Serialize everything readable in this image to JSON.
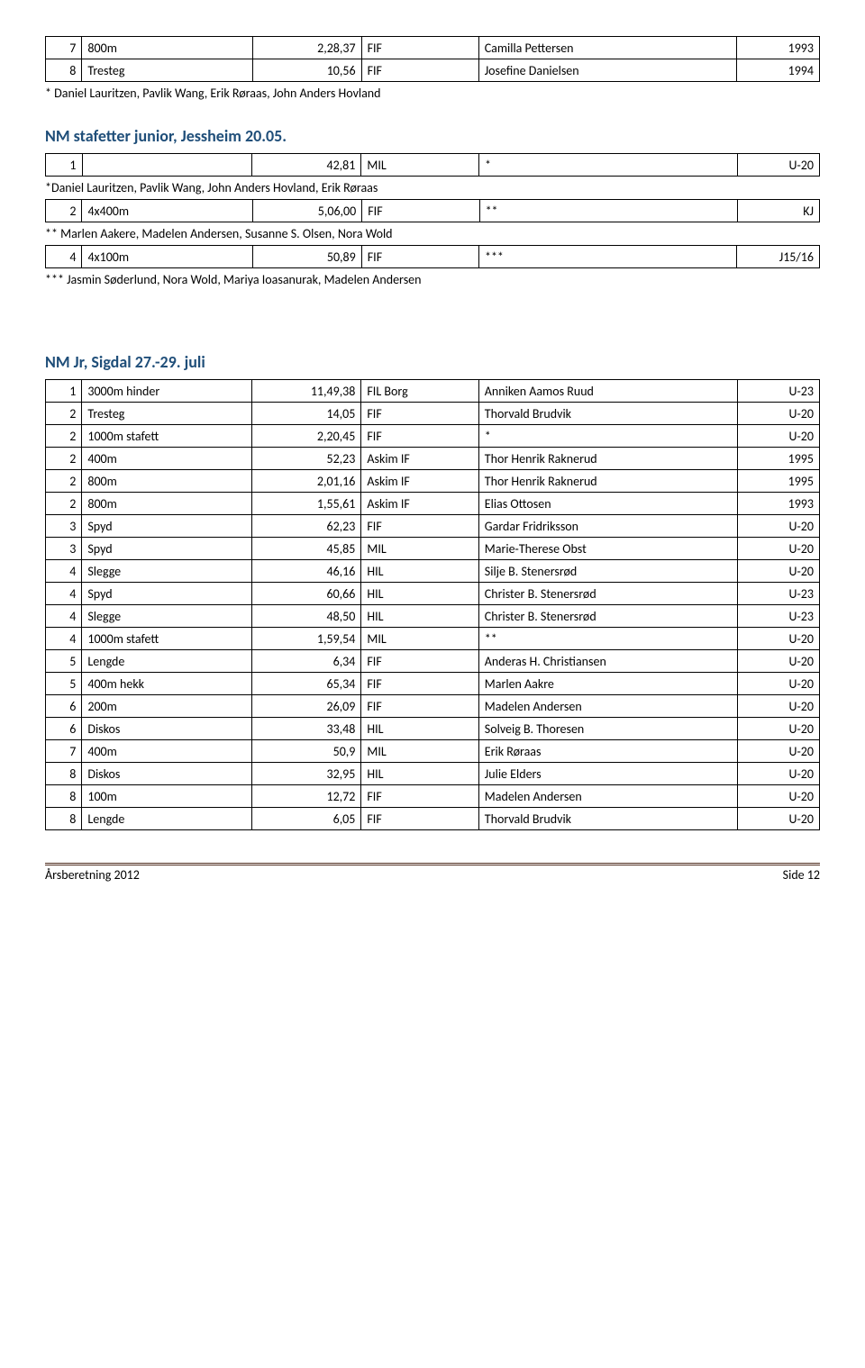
{
  "table_top": {
    "rows": [
      {
        "place": "7",
        "event": "800m",
        "result": "2,28,37",
        "club": "FIF",
        "name": "Camilla Pettersen",
        "year": "1993"
      },
      {
        "place": "8",
        "event": "Tresteg",
        "result": "10,56",
        "club": "FIF",
        "name": "Josefine Danielsen",
        "year": "1994"
      }
    ]
  },
  "note_top": "* Daniel Lauritzen, Pavlik Wang, Erik Røraas, John Anders Hovland",
  "section1": {
    "heading": "NM stafetter junior, Jessheim 20.05.",
    "row1": {
      "place": "1",
      "event": "",
      "result": "42,81",
      "club": "MIL",
      "name": "*",
      "year": "U-20"
    },
    "note1": "*Daniel Lauritzen, Pavlik Wang, John Anders Hovland, Erik Røraas",
    "row2": {
      "place": "2",
      "event": "4x400m",
      "result": "5,06,00",
      "club": "FIF",
      "name": "**",
      "year": "KJ"
    },
    "note2": "** Marlen Aakere, Madelen Andersen, Susanne S. Olsen, Nora Wold",
    "row3": {
      "place": "4",
      "event": "4x100m",
      "result": "50,89",
      "club": "FIF",
      "name": "***",
      "year": "J15/16"
    },
    "note3": "*** Jasmin Søderlund, Nora Wold, Mariya Ioasanurak, Madelen Andersen"
  },
  "section2": {
    "heading": "NM Jr, Sigdal 27.-29. juli",
    "rows": [
      {
        "place": "1",
        "event": "3000m hinder",
        "result": "11,49,38",
        "club": "FIL Borg",
        "name": "Anniken Aamos Ruud",
        "year": "U-23"
      },
      {
        "place": "2",
        "event": "Tresteg",
        "result": "14,05",
        "club": "FIF",
        "name": "Thorvald Brudvik",
        "year": "U-20"
      },
      {
        "place": "2",
        "event": "1000m stafett",
        "result": "2,20,45",
        "club": "FIF",
        "name": "*",
        "year": "U-20"
      },
      {
        "place": "2",
        "event": "400m",
        "result": "52,23",
        "club": "Askim IF",
        "name": "Thor Henrik Raknerud",
        "year": "1995"
      },
      {
        "place": "2",
        "event": "800m",
        "result": "2,01,16",
        "club": "Askim IF",
        "name": "Thor Henrik Raknerud",
        "year": "1995"
      },
      {
        "place": "2",
        "event": "800m",
        "result": "1,55,61",
        "club": "Askim IF",
        "name": "Elias Ottosen",
        "year": "1993"
      },
      {
        "place": "3",
        "event": "Spyd",
        "result": "62,23",
        "club": "FIF",
        "name": "Gardar Fridriksson",
        "year": "U-20"
      },
      {
        "place": "3",
        "event": "Spyd",
        "result": "45,85",
        "club": "MIL",
        "name": "Marie-Therese Obst",
        "year": "U-20"
      },
      {
        "place": "4",
        "event": "Slegge",
        "result": "46,16",
        "club": "HIL",
        "name": "Silje B. Stenersrød",
        "year": "U-20"
      },
      {
        "place": "4",
        "event": "Spyd",
        "result": "60,66",
        "club": "HIL",
        "name": "Christer B. Stenersrød",
        "year": "U-23"
      },
      {
        "place": "4",
        "event": "Slegge",
        "result": "48,50",
        "club": "HIL",
        "name": "Christer B. Stenersrød",
        "year": "U-23"
      },
      {
        "place": "4",
        "event": "1000m stafett",
        "result": "1,59,54",
        "club": "MIL",
        "name": "**",
        "year": "U-20"
      },
      {
        "place": "5",
        "event": "Lengde",
        "result": "6,34",
        "club": "FIF",
        "name": "Anderas H. Christiansen",
        "year": "U-20"
      },
      {
        "place": "5",
        "event": "400m hekk",
        "result": "65,34",
        "club": "FIF",
        "name": "Marlen Aakre",
        "year": "U-20"
      },
      {
        "place": "6",
        "event": "200m",
        "result": "26,09",
        "club": "FIF",
        "name": "Madelen Andersen",
        "year": "U-20"
      },
      {
        "place": "6",
        "event": "Diskos",
        "result": "33,48",
        "club": "HIL",
        "name": "Solveig B. Thoresen",
        "year": "U-20"
      },
      {
        "place": "7",
        "event": "400m",
        "result": "50,9",
        "club": "MIL",
        "name": "Erik Røraas",
        "year": "U-20"
      },
      {
        "place": "8",
        "event": "Diskos",
        "result": "32,95",
        "club": "HIL",
        "name": "Julie Elders",
        "year": "U-20"
      },
      {
        "place": "8",
        "event": "100m",
        "result": "12,72",
        "club": "FIF",
        "name": "Madelen Andersen",
        "year": "U-20"
      },
      {
        "place": "8",
        "event": "Lengde",
        "result": "6,05",
        "club": "FIF",
        "name": "Thorvald Brudvik",
        "year": "U-20"
      }
    ]
  },
  "footer": {
    "left": "Årsberetning 2012",
    "right": "Side 12"
  }
}
